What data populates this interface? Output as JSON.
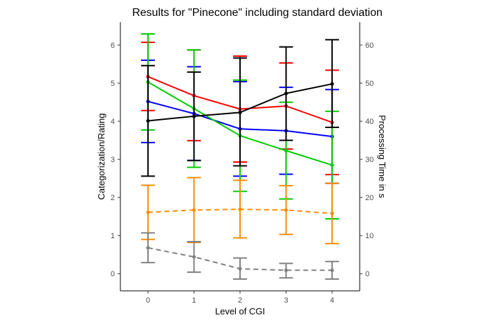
{
  "chart_data": {
    "type": "line",
    "title": "Results for \"Pinecone\" including standard deviation",
    "xlabel": "Level of CGI",
    "ylabel": "Categorization/Rating",
    "ylabel_right": "Processing Time in s",
    "x": [
      0,
      1,
      2,
      3,
      4
    ],
    "x_ticks": [
      "0",
      "1",
      "2",
      "3",
      "4"
    ],
    "xlim": [
      -0.6,
      4.6
    ],
    "ylim": [
      -0.45,
      6.6
    ],
    "y_ticks": [
      "0",
      "1",
      "2",
      "3",
      "4",
      "5",
      "6"
    ],
    "y2lim": [
      -4.5,
      66
    ],
    "y2_ticks": [
      "0",
      "10",
      "20",
      "30",
      "40",
      "50",
      "60"
    ],
    "grid": false,
    "legend": "none",
    "series": [
      {
        "color": "#ff0000",
        "axis": "left",
        "dashed": false,
        "values": [
          5.17,
          4.67,
          4.32,
          4.4,
          3.97
        ],
        "lower": [
          4.28,
          3.49,
          2.93,
          3.27,
          2.6
        ],
        "upper": [
          6.07,
          5.87,
          5.71,
          5.53,
          5.34
        ]
      },
      {
        "color": "#0000ff",
        "axis": "left",
        "dashed": false,
        "values": [
          4.52,
          4.2,
          3.8,
          3.75,
          3.6
        ],
        "lower": [
          3.44,
          2.97,
          2.56,
          2.61,
          2.37
        ],
        "upper": [
          5.6,
          5.43,
          5.04,
          4.89,
          4.83
        ]
      },
      {
        "color": "#00cc00",
        "axis": "left",
        "dashed": false,
        "values": [
          5.03,
          4.33,
          3.62,
          3.23,
          2.85
        ],
        "lower": [
          3.77,
          2.79,
          2.16,
          1.96,
          1.44
        ],
        "upper": [
          6.29,
          5.87,
          5.08,
          4.5,
          4.26
        ]
      },
      {
        "color": "#000000",
        "axis": "right",
        "dashed": false,
        "values": [
          40.1,
          41.3,
          42.3,
          47.3,
          49.8
        ],
        "lower": [
          25.6,
          29.7,
          28.3,
          35.0,
          38.4
        ],
        "upper": [
          54.6,
          52.9,
          56.6,
          59.5,
          61.4
        ]
      },
      {
        "color": "#ff8c00",
        "axis": "left",
        "dashed": true,
        "values": [
          1.61,
          1.67,
          1.69,
          1.67,
          1.58
        ],
        "lower": [
          0.9,
          0.82,
          0.94,
          1.03,
          0.79
        ],
        "upper": [
          2.32,
          2.52,
          2.45,
          2.31,
          2.37
        ]
      },
      {
        "color": "#808080",
        "axis": "left",
        "dashed": true,
        "values": [
          0.68,
          0.44,
          0.13,
          0.09,
          0.09
        ],
        "lower": [
          0.29,
          0.04,
          -0.14,
          -0.11,
          -0.14
        ],
        "upper": [
          1.07,
          0.84,
          0.41,
          0.27,
          0.32
        ]
      }
    ]
  }
}
